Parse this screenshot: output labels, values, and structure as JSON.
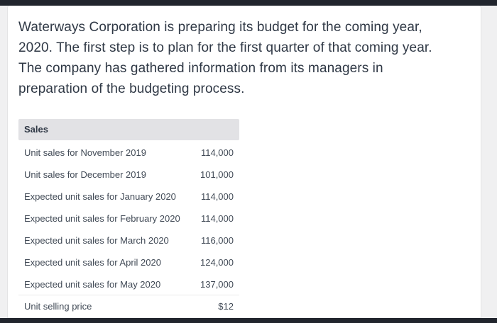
{
  "page": {
    "background_color": "#f0f0f1",
    "bar_color": "#21252d",
    "card_background": "#ffffff"
  },
  "intro": {
    "lines": [
      "Waterways Corporation is preparing its budget for the coming year,",
      "2020. The first step is to plan for the first quarter of that coming year.",
      "The company has gathered information from its managers in",
      "preparation of the budgeting process."
    ],
    "full_text": "Waterways Corporation is preparing its budget for the coming year, 2020. The first step is to plan for the first quarter of that coming year. The company has gathered information from its managers in preparation of the budgeting process."
  },
  "table": {
    "header": "Sales",
    "header_background": "#e2e2e5",
    "rows": [
      {
        "label": "Unit sales for November 2019",
        "value": "114,000"
      },
      {
        "label": "Unit sales for December 2019",
        "value": "101,000"
      },
      {
        "label": "Expected unit sales for January 2020",
        "value": "114,000"
      },
      {
        "label": "Expected unit sales for February 2020",
        "value": "114,000"
      },
      {
        "label": "Expected unit sales for March 2020",
        "value": "116,000"
      },
      {
        "label": "Expected unit sales for April 2020",
        "value": "124,000"
      },
      {
        "label": "Expected unit sales for May 2020",
        "value": "137,000"
      },
      {
        "label": "Unit selling price",
        "value": "$12"
      }
    ]
  }
}
